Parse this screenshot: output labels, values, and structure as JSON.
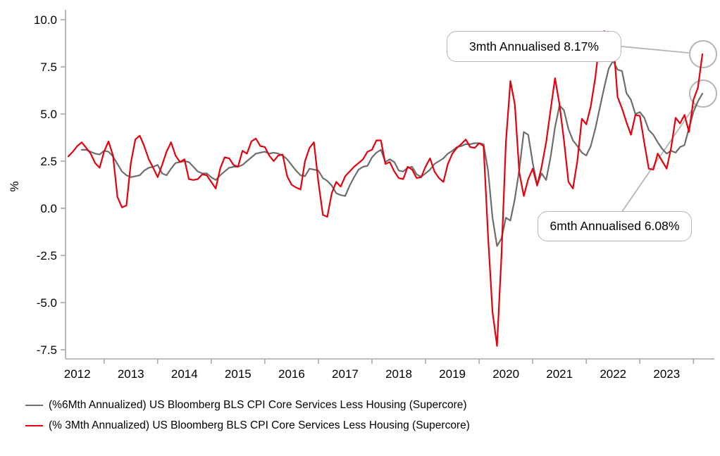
{
  "chart_data": {
    "type": "line",
    "title": "",
    "ylabel": "%",
    "ylim": [
      -7.5,
      10.0
    ],
    "y_ticks": [
      10.0,
      7.5,
      5.0,
      2.5,
      0.0,
      -2.5,
      -5.0,
      -7.5
    ],
    "grid": "off",
    "legend_position": "bottom-left",
    "x_axis": {
      "start_month": "2012-05",
      "end_month": "2024-03",
      "year_labels": [
        "2012",
        "2013",
        "2014",
        "2015",
        "2016",
        "2017",
        "2018",
        "2019",
        "2020",
        "2021",
        "2022",
        "2023"
      ],
      "first_jan_index": 8
    },
    "series": [
      {
        "name": "(%6Mth Annualized) US Bloomberg BLS CPI Core Services Less Housing (Supercore)",
        "color": "#6d6d6d",
        "values": [
          null,
          null,
          null,
          3.1,
          3.1,
          3.0,
          2.9,
          2.85,
          3.05,
          3.0,
          2.75,
          2.35,
          1.95,
          1.75,
          1.65,
          1.7,
          1.75,
          2.0,
          2.15,
          2.2,
          2.3,
          1.85,
          1.75,
          2.1,
          2.4,
          2.45,
          2.5,
          2.45,
          2.2,
          1.95,
          1.85,
          1.85,
          1.65,
          1.5,
          1.75,
          1.95,
          2.15,
          2.2,
          2.2,
          2.3,
          2.5,
          2.7,
          2.9,
          2.95,
          3.0,
          2.9,
          2.95,
          2.9,
          2.8,
          2.6,
          2.3,
          2.0,
          1.75,
          1.7,
          2.1,
          2.05,
          2.0,
          1.6,
          1.45,
          1.2,
          0.8,
          0.7,
          0.65,
          1.2,
          1.65,
          2.05,
          2.2,
          2.25,
          2.7,
          2.95,
          3.1,
          2.45,
          2.6,
          2.45,
          2.0,
          1.95,
          2.15,
          2.2,
          1.8,
          1.67,
          1.85,
          2.05,
          2.35,
          2.5,
          2.65,
          2.9,
          3.05,
          3.25,
          3.3,
          3.4,
          3.4,
          3.45,
          3.45,
          3.4,
          2.0,
          -0.5,
          -2.0,
          -1.6,
          -0.5,
          -0.65,
          0.5,
          2.05,
          4.05,
          3.9,
          2.4,
          1.25,
          1.85,
          1.5,
          2.7,
          4.3,
          5.45,
          5.2,
          4.2,
          3.6,
          3.3,
          2.95,
          2.8,
          3.3,
          4.2,
          5.3,
          6.4,
          7.4,
          7.82,
          7.35,
          7.28,
          6.1,
          5.75,
          5.0,
          5.1,
          4.8,
          4.15,
          3.9,
          3.5,
          3.15,
          2.9,
          3.05,
          2.95,
          3.25,
          3.35,
          4.25,
          5.11,
          5.67,
          6.08
        ]
      },
      {
        "name": "(% 3Mth Annualized) US Bloomberg BLS CPI Core Services Less Housing (Supercore)",
        "color": "#e4000f",
        "values": [
          2.75,
          3.0,
          3.3,
          3.5,
          3.2,
          2.9,
          2.4,
          2.15,
          3.0,
          3.55,
          2.8,
          0.6,
          0.05,
          0.15,
          2.4,
          3.65,
          3.85,
          3.3,
          2.6,
          2.15,
          1.65,
          2.3,
          3.0,
          3.5,
          2.8,
          2.45,
          2.6,
          1.55,
          1.5,
          1.55,
          1.8,
          1.75,
          1.4,
          1.05,
          2.1,
          2.7,
          2.65,
          2.3,
          2.2,
          3.05,
          2.9,
          3.55,
          3.7,
          3.3,
          3.25,
          2.8,
          2.5,
          2.8,
          2.85,
          1.7,
          1.25,
          1.1,
          1.0,
          2.5,
          3.2,
          3.5,
          1.4,
          -0.35,
          -0.45,
          0.8,
          1.4,
          1.15,
          1.7,
          1.95,
          2.2,
          2.4,
          2.6,
          3.0,
          3.1,
          3.6,
          3.6,
          2.35,
          2.45,
          1.95,
          1.6,
          1.55,
          2.2,
          2.05,
          1.6,
          1.65,
          2.2,
          2.65,
          1.95,
          1.6,
          1.4,
          2.35,
          2.9,
          3.2,
          3.4,
          3.65,
          3.25,
          3.2,
          3.45,
          3.3,
          -1.5,
          -5.5,
          -7.3,
          -2.5,
          3.5,
          6.75,
          5.5,
          1.9,
          0.65,
          1.55,
          2.1,
          1.2,
          2.2,
          3.5,
          5.2,
          6.9,
          5.5,
          3.6,
          1.4,
          1.05,
          2.5,
          4.75,
          4.45,
          5.4,
          6.9,
          8.9,
          9.4,
          8.5,
          9.05,
          5.9,
          5.3,
          4.55,
          3.9,
          4.95,
          4.9,
          3.45,
          2.1,
          2.05,
          2.9,
          2.5,
          2.1,
          3.2,
          4.8,
          4.5,
          4.95,
          4.05,
          5.75,
          6.4,
          8.17
        ]
      }
    ],
    "annotations": [
      {
        "label": "3mth Annualised 8.17%",
        "value": 8.17,
        "series": "3mth"
      },
      {
        "label": "6mth Annualised 6.08%",
        "value": 6.08,
        "series": "6mth"
      }
    ]
  }
}
